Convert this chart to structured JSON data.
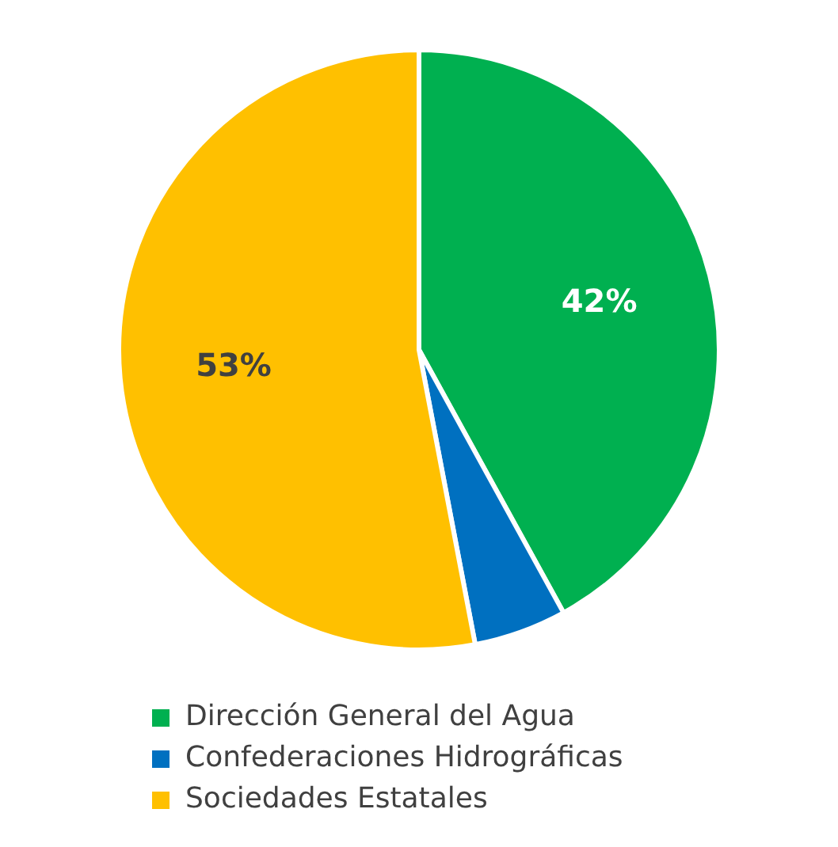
{
  "chart_data": {
    "type": "pie",
    "categories": [
      "Dirección General del Agua",
      "Confederaciones Hidrográficas",
      "Sociedades Estatales"
    ],
    "values": [
      42,
      5,
      53
    ],
    "colors": [
      "#00b050",
      "#0070c0",
      "#ffc000"
    ],
    "value_labels": [
      "42%",
      null,
      "53%"
    ],
    "legend": "bottom"
  }
}
